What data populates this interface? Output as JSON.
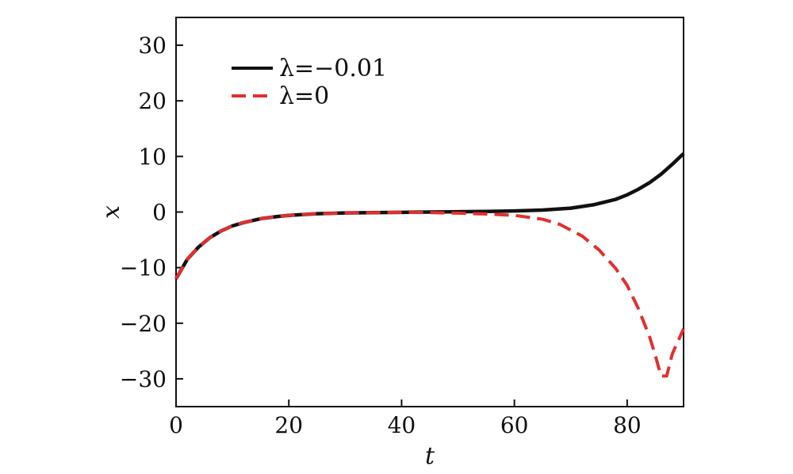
{
  "chart_data": {
    "type": "line",
    "xlabel": "t",
    "ylabel": "x",
    "xlim": [
      0,
      90
    ],
    "ylim": [
      -35,
      35
    ],
    "xticks": [
      0,
      20,
      40,
      60,
      80
    ],
    "yticks": [
      -30,
      -20,
      -10,
      0,
      10,
      20,
      30
    ],
    "xtick_labels": [
      "0",
      "20",
      "40",
      "60",
      "80"
    ],
    "ytick_labels": [
      "−30",
      "−20",
      "−10",
      "0",
      "10",
      "20",
      "30"
    ],
    "grid": false,
    "legend_position": "top-left",
    "series": [
      {
        "name": "λ=−0.01",
        "color": "#111111",
        "style": "solid",
        "x": [
          0,
          2,
          4,
          6,
          8,
          10,
          12,
          15,
          18,
          20,
          25,
          30,
          35,
          40,
          45,
          50,
          55,
          60,
          65,
          70,
          74,
          78,
          80,
          82,
          84,
          86,
          88,
          90
        ],
        "y": [
          -12,
          -8.5,
          -6.3,
          -4.6,
          -3.4,
          -2.5,
          -1.9,
          -1.2,
          -0.8,
          -0.6,
          -0.3,
          -0.15,
          -0.1,
          -0.05,
          0,
          0.05,
          0.1,
          0.2,
          0.35,
          0.7,
          1.3,
          2.3,
          3.1,
          4.1,
          5.3,
          6.8,
          8.6,
          10.5
        ]
      },
      {
        "name": "λ=0",
        "color": "#e03030",
        "style": "dashed",
        "x": [
          0,
          2,
          4,
          6,
          8,
          10,
          12,
          15,
          18,
          20,
          25,
          30,
          35,
          40,
          45,
          50,
          55,
          60,
          65,
          68,
          72,
          75,
          78,
          80,
          82,
          84,
          85,
          86,
          87,
          88,
          90
        ],
        "y": [
          -12,
          -8.5,
          -6.3,
          -4.6,
          -3.4,
          -2.5,
          -1.9,
          -1.2,
          -0.8,
          -0.6,
          -0.3,
          -0.15,
          -0.1,
          -0.05,
          -0.1,
          -0.2,
          -0.35,
          -0.6,
          -1.3,
          -2.2,
          -4.3,
          -6.8,
          -10.2,
          -13.2,
          -17.4,
          -22.5,
          -25.8,
          -29.5,
          -29.5,
          -25.5,
          -21
        ]
      }
    ]
  }
}
